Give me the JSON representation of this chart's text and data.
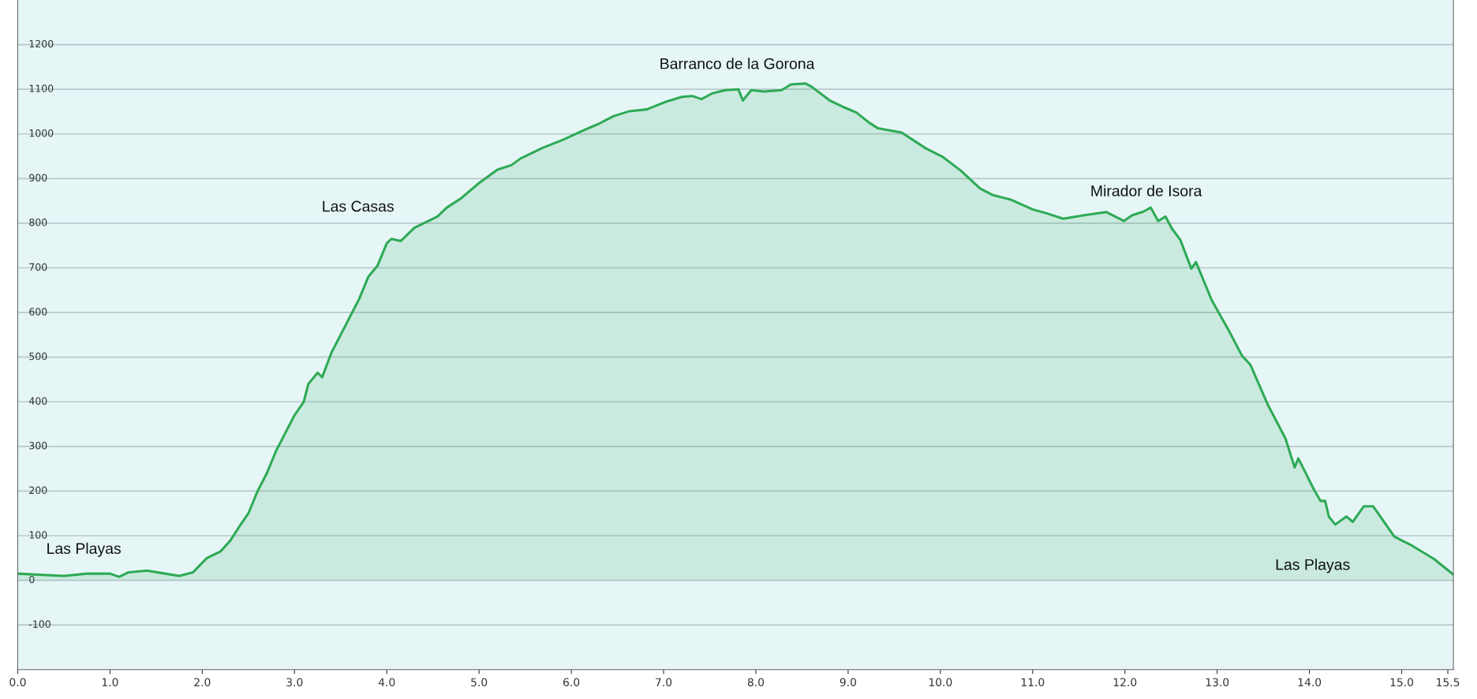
{
  "chart_data": {
    "type": "area",
    "color": "#2eaa55",
    "grid": "y",
    "xlim": [
      0,
      15.56
    ],
    "xticks": [
      {
        "value": 0,
        "label": "0.0"
      },
      {
        "value": 1,
        "label": "1.0"
      },
      {
        "value": 2,
        "label": "2.0"
      },
      {
        "value": 3,
        "label": "3.0"
      },
      {
        "value": 4,
        "label": "4.0"
      },
      {
        "value": 5,
        "label": "5.0"
      },
      {
        "value": 6,
        "label": "6.0"
      },
      {
        "value": 7,
        "label": "7.0"
      },
      {
        "value": 8,
        "label": "8.0"
      },
      {
        "value": 9,
        "label": "9.0"
      },
      {
        "value": 10,
        "label": "10.0"
      },
      {
        "value": 11,
        "label": "11.0"
      },
      {
        "value": 12,
        "label": "12.0"
      },
      {
        "value": 13,
        "label": "13.0"
      },
      {
        "value": 14,
        "label": "14.0"
      },
      {
        "value": 15,
        "label": "15.0"
      },
      {
        "value": 15.5,
        "label": "15.5"
      }
    ],
    "ylim": [
      -200,
      1300
    ],
    "yticks": [
      -100,
      0,
      100,
      200,
      300,
      400,
      500,
      600,
      700,
      800,
      900,
      1000,
      1100,
      1200
    ],
    "x": [
      0,
      0.5,
      0.75,
      1.0,
      1.1,
      1.2,
      1.4,
      1.6,
      1.75,
      1.9,
      2.05,
      2.2,
      2.3,
      2.4,
      2.5,
      2.6,
      2.7,
      2.8,
      2.9,
      3.0,
      3.1,
      3.15,
      3.25,
      3.3,
      3.4,
      3.5,
      3.6,
      3.7,
      3.8,
      3.9,
      4.0,
      4.05,
      4.15,
      4.3,
      4.45,
      4.55,
      4.65,
      4.8,
      5.0,
      5.2,
      5.35,
      5.45,
      5.68,
      5.92,
      6.11,
      6.3,
      6.46,
      6.63,
      6.82,
      7.01,
      7.2,
      7.31,
      7.41,
      7.53,
      7.67,
      7.81,
      7.86,
      7.95,
      8.09,
      8.28,
      8.38,
      8.54,
      8.61,
      8.8,
      8.94,
      9.09,
      9.23,
      9.32,
      9.58,
      9.84,
      10.03,
      10.22,
      10.43,
      10.57,
      10.76,
      11.0,
      11.14,
      11.33,
      11.56,
      11.8,
      11.99,
      12.08,
      12.2,
      12.28,
      12.36,
      12.44,
      12.51,
      12.6,
      12.72,
      12.77,
      12.94,
      13.13,
      13.27,
      13.36,
      13.55,
      13.74,
      13.84,
      13.88,
      14.05,
      14.12,
      14.17,
      14.21,
      14.28,
      14.4,
      14.47,
      14.59,
      14.69,
      14.92,
      15.11,
      15.35,
      15.56
    ],
    "values": [
      15,
      10,
      15,
      15,
      8,
      18,
      22,
      15,
      10,
      18,
      50,
      65,
      88,
      120,
      150,
      200,
      240,
      290,
      330,
      370,
      400,
      440,
      465,
      455,
      510,
      550,
      590,
      630,
      680,
      705,
      755,
      765,
      760,
      790,
      805,
      815,
      835,
      855,
      890,
      920,
      930,
      945,
      968,
      988,
      1006,
      1023,
      1040,
      1051,
      1055,
      1071,
      1083,
      1085,
      1078,
      1091,
      1098,
      1100,
      1075,
      1098,
      1095,
      1098,
      1111,
      1113,
      1105,
      1075,
      1061,
      1048,
      1025,
      1013,
      1003,
      968,
      948,
      918,
      878,
      863,
      853,
      831,
      823,
      810,
      818,
      825,
      805,
      818,
      826,
      835,
      805,
      815,
      788,
      763,
      698,
      713,
      628,
      558,
      503,
      483,
      393,
      318,
      253,
      273,
      203,
      178,
      178,
      143,
      125,
      143,
      131,
      166,
      166,
      98,
      78,
      48,
      13
    ],
    "annotations": [
      "Las Playas",
      "Las Casas",
      "Barranco de la Gorona",
      "Mirador de Isora",
      "Las Playas"
    ]
  }
}
